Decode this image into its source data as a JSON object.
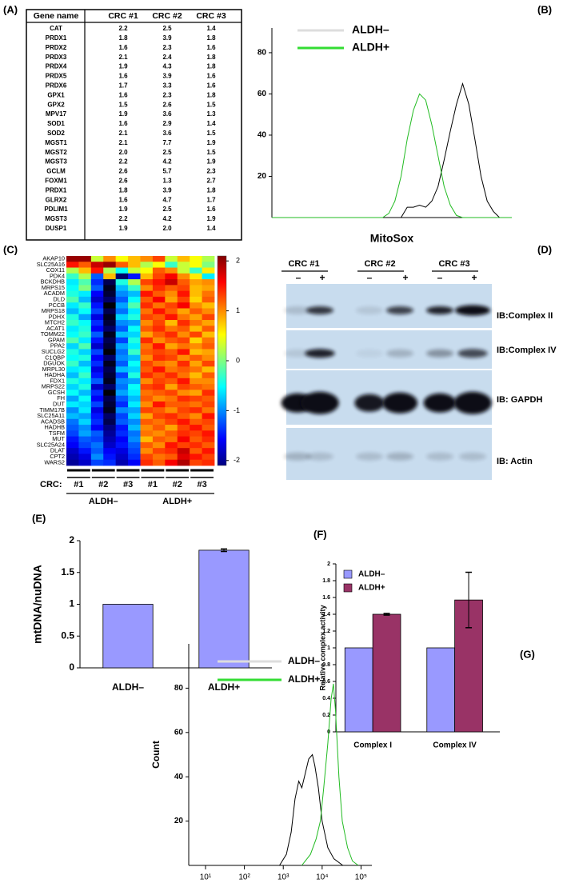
{
  "table": {
    "label": "(A)",
    "header": [
      "Gene name",
      "CRC #1",
      "CRC #2",
      "CRC #3"
    ],
    "rows": [
      [
        "CAT",
        "2.2",
        "2.5",
        "1.4"
      ],
      [
        "PRDX1",
        "1.8",
        "3.9",
        "1.8"
      ],
      [
        "PRDX2",
        "1.6",
        "2.3",
        "1.6"
      ],
      [
        "PRDX3",
        "2.1",
        "2.4",
        "1.8"
      ],
      [
        "PRDX4",
        "1.9",
        "4.3",
        "1.8"
      ],
      [
        "PRDX5",
        "1.6",
        "3.9",
        "1.6"
      ],
      [
        "PRDX6",
        "1.7",
        "3.3",
        "1.6"
      ],
      [
        "GPX1",
        "1.6",
        "2.3",
        "1.8"
      ],
      [
        "GPX2",
        "1.5",
        "2.6",
        "1.5"
      ],
      [
        "MPV17",
        "1.9",
        "3.6",
        "1.3"
      ],
      [
        "SOD1",
        "1.6",
        "2.9",
        "1.4"
      ],
      [
        "SOD2",
        "2.1",
        "3.6",
        "1.5"
      ],
      [
        "MGST1",
        "2.1",
        "7.7",
        "1.9"
      ],
      [
        "MGST2",
        "2.0",
        "2.5",
        "1.5"
      ],
      [
        "MGST3",
        "2.2",
        "4.2",
        "1.9"
      ],
      [
        "GCLM",
        "2.6",
        "5.7",
        "2.3"
      ],
      [
        "FOXM1",
        "2.6",
        "1.3",
        "2.7"
      ],
      [
        "PRDX1",
        "1.8",
        "3.9",
        "1.8"
      ],
      [
        "GLRX2",
        "1.6",
        "4.7",
        "1.7"
      ],
      [
        "PDLIM1",
        "1.9",
        "2.5",
        "1.6"
      ],
      [
        "MGST3",
        "2.2",
        "4.2",
        "1.9"
      ],
      [
        "DUSP1",
        "1.9",
        "2.0",
        "1.4"
      ]
    ]
  },
  "blot": {
    "label": "(D)",
    "groups": [
      "CRC #1",
      "CRC #2",
      "CRC #3"
    ],
    "lanes": [
      "–",
      "+",
      "–",
      "+",
      "–",
      "+"
    ],
    "blots": [
      "IB:Complex II",
      "IB:Complex IV",
      "IB: GAPDH",
      "IB: Actin"
    ]
  },
  "chart_data": [
    {
      "type": "line",
      "label": "(B)",
      "xlabel": "MitoSox",
      "ylim": [
        0,
        92
      ],
      "yticks": [
        20,
        40,
        60,
        80
      ],
      "series": [
        {
          "name": "ALDH–",
          "color": "#dddddd",
          "line_color": "#000000",
          "values": [
            0,
            0,
            0,
            0,
            0,
            0,
            0,
            0,
            0,
            0,
            0,
            0,
            0,
            0,
            0,
            0,
            0,
            0,
            0,
            0,
            0,
            0,
            5,
            5,
            6,
            5,
            8,
            15,
            28,
            42,
            55,
            65,
            55,
            38,
            20,
            8,
            3,
            0,
            0,
            0
          ]
        },
        {
          "name": "ALDH+",
          "color": "#33dd33",
          "line_color": "#22bb22",
          "values": [
            0,
            0,
            0,
            0,
            0,
            0,
            0,
            0,
            0,
            0,
            0,
            0,
            0,
            0,
            0,
            0,
            0,
            0,
            0,
            2,
            8,
            20,
            38,
            52,
            60,
            57,
            45,
            30,
            15,
            6,
            1,
            0,
            0,
            0,
            0,
            0,
            0,
            0,
            0,
            0
          ]
        }
      ]
    },
    {
      "type": "heatmap",
      "label": "(C)",
      "axis_label": "CRC:",
      "col_groups": [
        "#1",
        "#2",
        "#3",
        "#1",
        "#2",
        "#3"
      ],
      "groups": [
        "ALDH–",
        "ALDH+"
      ],
      "rows": [
        "AKAP10",
        "SLC25A16",
        "COX11",
        "PDK4",
        "BCKDHB",
        "MRPS15",
        "ACADM",
        "DLD",
        "PCCB",
        "MRPS18",
        "PDHX",
        "MTCH2",
        "ACAT1",
        "TOMM22",
        "GPAM",
        "PPA2",
        "SUCLG2",
        "C1QBP",
        "DGUOK",
        "MRPL30",
        "HADHA",
        "FDX1",
        "MRPS22",
        "GCSH",
        "FH",
        "DUT",
        "TIMM17B",
        "SLC25A11",
        "ACADSB",
        "HADHB",
        "TSFM",
        "MUT",
        "SLC25A24",
        "DLAT",
        "CPT2",
        "WARS2"
      ],
      "clim": [
        -2.1,
        2.1
      ],
      "cticks": [
        2,
        1,
        0,
        -1,
        -2
      ],
      "values": [
        [
          2,
          2,
          0.3,
          1,
          0.5,
          0.8,
          1,
          1.3,
          0.3,
          0.8,
          0.5,
          0.2
        ],
        [
          1.5,
          1.2,
          1.8,
          2,
          1.2,
          0.8,
          0.2,
          0.5,
          -0.3,
          0.3,
          0.5,
          0
        ],
        [
          0.2,
          0.8,
          1.5,
          0.2,
          -0.5,
          0.3,
          0.5,
          1.2,
          1,
          0.3,
          -0.3,
          0.6
        ],
        [
          -0.3,
          0.2,
          -1.2,
          0.8,
          -2.2,
          -1.5,
          0.8,
          1.3,
          1.6,
          1,
          0.6,
          -0.6
        ],
        [
          -0.6,
          -0.2,
          -1.4,
          -2.3,
          -0.4,
          0.2,
          1.3,
          1.5,
          1.8,
          1.2,
          0.9,
          1
        ],
        [
          -0.5,
          0,
          -1.2,
          -2.5,
          -0.8,
          -0.3,
          1,
          1.4,
          1.2,
          1.3,
          0.8,
          0.9
        ],
        [
          -0.4,
          -0.6,
          -1.6,
          -2.4,
          -1,
          -0.8,
          1.5,
          1.2,
          1,
          1.5,
          0.8,
          1.1
        ],
        [
          -0.2,
          -0.8,
          -1.8,
          -2.2,
          -1.2,
          -0.5,
          1.2,
          1.6,
          0.9,
          1.3,
          0.7,
          1.2
        ],
        [
          -0.6,
          -0.3,
          -1.5,
          -2.6,
          -0.9,
          -0.2,
          1.4,
          1.1,
          1.3,
          1.6,
          1,
          0.8
        ],
        [
          -0.8,
          -0.5,
          -1.3,
          -2.3,
          -1.1,
          -0.6,
          1.1,
          1.5,
          1.2,
          0.9,
          1.2,
          1
        ],
        [
          -0.4,
          -0.9,
          -1.7,
          -2.5,
          -0.7,
          -0.4,
          1.3,
          1.2,
          1.5,
          1.1,
          0.9,
          1.3
        ],
        [
          -0.3,
          -0.5,
          -1.4,
          -2.4,
          -1,
          -0.9,
          1,
          1.3,
          0.8,
          1.4,
          1.1,
          0.9
        ],
        [
          -0.6,
          -0.4,
          -1.6,
          -2.2,
          -1.2,
          -0.5,
          1.2,
          1.4,
          1.1,
          1.2,
          0.8,
          1.2
        ],
        [
          -0.5,
          -0.3,
          -1.2,
          -2.5,
          -0.8,
          -0.7,
          0.9,
          1.2,
          1.4,
          1,
          1.3,
          0.8
        ],
        [
          -0.2,
          -0.6,
          -1.5,
          -2.3,
          -1.3,
          -0.4,
          1.4,
          1,
          1.2,
          1.3,
          0.7,
          1.1
        ],
        [
          -0.7,
          -0.2,
          -1.8,
          -2.4,
          -0.9,
          -0.6,
          1.1,
          1.5,
          0.9,
          1.1,
          1,
          1.2
        ],
        [
          -0.4,
          -0.7,
          -1.3,
          -2.6,
          -1.1,
          -0.3,
          1.2,
          1.3,
          1.2,
          1.5,
          0.8,
          0.9
        ],
        [
          -0.5,
          -0.4,
          -1.6,
          -2.2,
          -1,
          -0.8,
          1,
          1.4,
          1.3,
          1,
          1.2,
          1
        ],
        [
          -0.3,
          -0.8,
          -1.4,
          -2.5,
          -1.2,
          -0.5,
          1.3,
          1.1,
          1,
          1.4,
          0.9,
          1.3
        ],
        [
          -0.6,
          -0.5,
          -1.7,
          -2.3,
          -0.8,
          -0.7,
          1.2,
          1.5,
          1.1,
          1.2,
          1.1,
          0.8
        ],
        [
          -0.8,
          -0.3,
          -1.5,
          -2.4,
          -1.3,
          -0.4,
          1.4,
          1.2,
          1.4,
          1.1,
          0.8,
          1.2
        ],
        [
          -0.4,
          -0.6,
          -1.2,
          -2.5,
          -1,
          -0.9,
          1,
          1.3,
          1.2,
          1.5,
          1,
          1
        ],
        [
          -0.7,
          -0.4,
          -1.8,
          -2.2,
          -1.1,
          -0.5,
          1.3,
          1.4,
          0.9,
          1.3,
          1.2,
          1.1
        ],
        [
          -0.5,
          -0.8,
          -1.4,
          -2.6,
          -0.9,
          -0.6,
          1.1,
          1.2,
          1.3,
          1,
          0.9,
          1.4
        ],
        [
          -0.9,
          -0.5,
          -1.6,
          -2.3,
          -1.2,
          -0.8,
          1.2,
          1,
          1.1,
          1.4,
          1.3,
          1.2
        ],
        [
          -0.6,
          -0.7,
          -1.3,
          -2.4,
          -1.4,
          -0.6,
          1,
          1.5,
          1.2,
          1.2,
          1.1,
          1.3
        ],
        [
          -1,
          -0.6,
          -1.7,
          -2.5,
          -1,
          -0.9,
          1.3,
          1.2,
          1,
          1.3,
          1.4,
          1.1
        ],
        [
          -0.8,
          -0.9,
          -1.5,
          -2.2,
          -1.3,
          -0.7,
          0.9,
          1.3,
          1.4,
          1.2,
          1,
          1.5
        ],
        [
          -1.1,
          -0.7,
          -1.4,
          -2.3,
          -1.2,
          -1,
          1.2,
          1.1,
          1.3,
          1.5,
          1.2,
          1.3
        ],
        [
          -1.2,
          -1,
          -1.6,
          -2.1,
          -1.5,
          -0.8,
          1,
          1.2,
          0.9,
          1.3,
          1.5,
          1.2
        ],
        [
          -1.3,
          -0.9,
          -1.2,
          -2,
          -1.4,
          -1.1,
          1.1,
          1,
          1.2,
          1.4,
          1.3,
          1.5
        ],
        [
          -1.5,
          -1.2,
          -1.3,
          -1.9,
          -1.6,
          -1,
          0.8,
          1.2,
          1.1,
          1.6,
          1.2,
          1.4
        ],
        [
          -1.6,
          -1.3,
          -1.1,
          -1.8,
          -1.5,
          -1.2,
          1.2,
          1,
          1.5,
          1.3,
          1.4,
          1.2
        ],
        [
          -1.8,
          -1.5,
          -1.2,
          -1.6,
          -1.7,
          -1.3,
          1,
          1.3,
          1.4,
          1.8,
          1.2,
          1.5
        ],
        [
          -1.9,
          -1.7,
          -1,
          -1.5,
          -1.8,
          -1.4,
          1.3,
          1.1,
          1.2,
          1.7,
          1.5,
          1.3
        ],
        [
          -2,
          -1.8,
          -1.3,
          -1.4,
          -1.9,
          -1.6,
          1.4,
          1.2,
          1.6,
          1.9,
          1.3,
          1.4
        ]
      ]
    },
    {
      "type": "bar",
      "label": "(E)",
      "ylabel": "mtDNA/nuDNA",
      "categories": [
        "ALDH–",
        "ALDH+"
      ],
      "values": [
        1,
        1.85
      ],
      "errors": [
        0,
        0.02
      ],
      "color": "#9999ff",
      "ylim": [
        0,
        2
      ],
      "yticks": [
        0,
        0.5,
        1,
        1.5,
        2
      ]
    },
    {
      "type": "bar",
      "label": "(F)",
      "ylabel": "Relative complex activity",
      "categories": [
        "Complex I",
        "Complex IV"
      ],
      "ylim": [
        0,
        2
      ],
      "yticks": [
        0,
        0.2,
        0.4,
        0.6,
        0.8,
        1,
        1.2,
        1.4,
        1.6,
        1.8,
        2
      ],
      "series": [
        {
          "name": "ALDH–",
          "color": "#9999ff",
          "values": [
            1,
            1
          ],
          "errors": [
            0,
            0
          ]
        },
        {
          "name": "ALDH+",
          "color": "#993366",
          "values": [
            1.4,
            1.57
          ],
          "errors": [
            0.01,
            0.33
          ]
        }
      ]
    },
    {
      "type": "line",
      "label": "(G)",
      "xlabel": "MitoTracker Red",
      "ylabel": "Count",
      "xscale": "log",
      "xlim": [
        3.7,
        190000
      ],
      "ylim": [
        0,
        100
      ],
      "yticks": [
        20,
        40,
        60,
        80
      ],
      "xticks": [
        {
          "value": 10,
          "label": "10¹"
        },
        {
          "value": 100,
          "label": "10²"
        },
        {
          "value": 1000,
          "label": "10³"
        },
        {
          "value": 10000,
          "label": "10⁴"
        },
        {
          "value": 100000,
          "label": "10⁵"
        }
      ],
      "series": [
        {
          "name": "ALDH–",
          "color": "#dddddd",
          "line_color": "#000000",
          "x": [
            800,
            1200,
            1600,
            2000,
            2500,
            3000,
            3500,
            4500,
            5600,
            6500,
            8000,
            10000,
            14000,
            20000,
            34000
          ],
          "values": [
            0,
            5,
            15,
            30,
            38,
            35,
            40,
            48,
            50,
            45,
            35,
            20,
            8,
            3,
            0
          ]
        },
        {
          "name": "ALDH+",
          "color": "#33dd33",
          "line_color": "#22bb22",
          "x": [
            3000,
            5000,
            7000,
            9000,
            11000,
            14000,
            17000,
            19500,
            22000,
            27000,
            33000,
            45000,
            60000,
            85000
          ],
          "values": [
            0,
            5,
            12,
            20,
            35,
            55,
            75,
            82,
            70,
            40,
            20,
            8,
            2,
            0
          ]
        }
      ]
    }
  ]
}
